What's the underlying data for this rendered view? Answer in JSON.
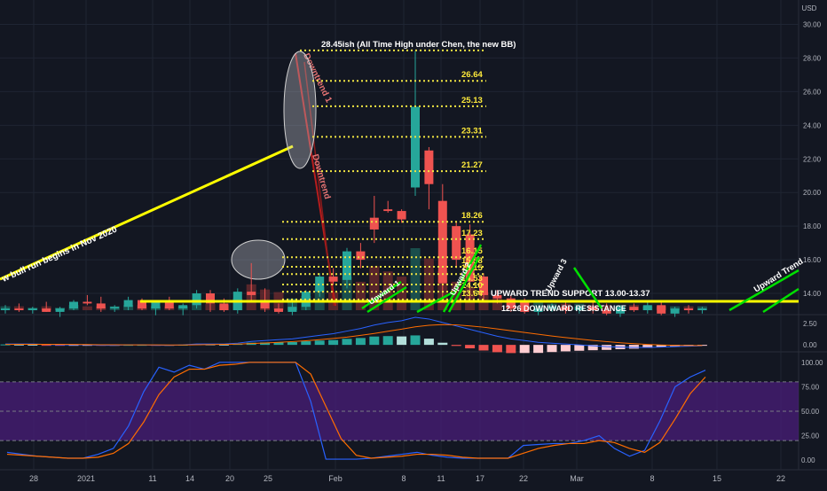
{
  "currency": "USD",
  "colors": {
    "background": "#131722",
    "grid": "#1f2533",
    "axis_text": "#b2b5be",
    "up": "#26a69a",
    "down": "#ef5350",
    "level_line": "#f0e442",
    "level_text": "#ffeb3b",
    "support_line": "#ffff00",
    "trend_green": "#00e000",
    "trend_red": "#b71c1c",
    "macd_line": "#2962ff",
    "signal_line": "#ff6d00",
    "stoch_band": "#4a1e7a"
  },
  "chart_data": [
    {
      "type": "candlestick",
      "title": "",
      "ylim": [
        13,
        30.5
      ],
      "y_ticks": [
        14,
        16,
        18,
        20,
        22,
        24,
        26,
        28,
        30
      ],
      "y_tick_labels": [
        "14.00",
        "16.00",
        "18.00",
        "20.00",
        "22.00",
        "24.00",
        "26.00",
        "28.00",
        "30.00"
      ],
      "x_tick_labels": [
        "28",
        "2021",
        "11",
        "14",
        "20",
        "25",
        "Feb",
        "8",
        "11",
        "17",
        "22",
        "Mar",
        "8",
        "15",
        "22"
      ],
      "candles": [
        {
          "o": 13.0,
          "h": 13.3,
          "l": 12.8,
          "c": 13.1
        },
        {
          "o": 13.1,
          "h": 13.4,
          "l": 12.9,
          "c": 13.0
        },
        {
          "o": 13.0,
          "h": 13.2,
          "l": 12.8,
          "c": 13.1
        },
        {
          "o": 13.1,
          "h": 13.5,
          "l": 12.9,
          "c": 12.9
        },
        {
          "o": 12.9,
          "h": 13.2,
          "l": 12.6,
          "c": 13.1
        },
        {
          "o": 13.1,
          "h": 13.6,
          "l": 13.0,
          "c": 13.5
        },
        {
          "o": 13.5,
          "h": 13.9,
          "l": 13.3,
          "c": 13.4
        },
        {
          "o": 13.4,
          "h": 13.8,
          "l": 12.9,
          "c": 13.1
        },
        {
          "o": 13.1,
          "h": 13.3,
          "l": 12.9,
          "c": 13.2
        },
        {
          "o": 13.2,
          "h": 13.8,
          "l": 13.0,
          "c": 13.6
        },
        {
          "o": 13.6,
          "h": 13.7,
          "l": 13.0,
          "c": 13.1
        },
        {
          "o": 13.1,
          "h": 13.6,
          "l": 12.7,
          "c": 13.5
        },
        {
          "o": 13.5,
          "h": 13.8,
          "l": 13.0,
          "c": 13.1
        },
        {
          "o": 13.1,
          "h": 13.4,
          "l": 12.7,
          "c": 13.3
        },
        {
          "o": 13.3,
          "h": 14.2,
          "l": 13.1,
          "c": 14.0
        },
        {
          "o": 14.0,
          "h": 14.2,
          "l": 12.9,
          "c": 13.4
        },
        {
          "o": 13.4,
          "h": 13.7,
          "l": 12.9,
          "c": 13.0
        },
        {
          "o": 13.0,
          "h": 14.3,
          "l": 12.8,
          "c": 14.1
        },
        {
          "o": 14.1,
          "h": 15.8,
          "l": 13.6,
          "c": 13.9
        },
        {
          "o": 13.5,
          "h": 14.3,
          "l": 12.9,
          "c": 13.1
        },
        {
          "o": 13.1,
          "h": 13.4,
          "l": 12.8,
          "c": 12.9
        },
        {
          "o": 12.9,
          "h": 13.5,
          "l": 12.7,
          "c": 13.2
        },
        {
          "o": 13.2,
          "h": 14.2,
          "l": 13.0,
          "c": 14.1
        },
        {
          "o": 14.1,
          "h": 15.2,
          "l": 13.8,
          "c": 15.0
        },
        {
          "o": 15.0,
          "h": 15.5,
          "l": 14.5,
          "c": 14.7
        },
        {
          "o": 14.8,
          "h": 16.7,
          "l": 14.3,
          "c": 16.5
        },
        {
          "o": 16.5,
          "h": 17.0,
          "l": 15.5,
          "c": 16.0
        },
        {
          "o": 18.5,
          "h": 19.8,
          "l": 17.0,
          "c": 17.8
        },
        {
          "o": 19.0,
          "h": 19.5,
          "l": 18.8,
          "c": 18.9
        },
        {
          "o": 18.9,
          "h": 19.0,
          "l": 18.2,
          "c": 18.4
        },
        {
          "o": 20.3,
          "h": 28.4,
          "l": 19.8,
          "c": 25.1
        },
        {
          "o": 22.5,
          "h": 22.7,
          "l": 19.0,
          "c": 20.5
        },
        {
          "o": 19.5,
          "h": 20.5,
          "l": 13.5,
          "c": 14.6
        },
        {
          "o": 18.0,
          "h": 18.3,
          "l": 15.5,
          "c": 16.0
        },
        {
          "o": 17.5,
          "h": 18.1,
          "l": 13.5,
          "c": 14.7
        },
        {
          "o": 15.0,
          "h": 15.2,
          "l": 13.6,
          "c": 13.9
        },
        {
          "o": 13.9,
          "h": 14.2,
          "l": 13.4,
          "c": 13.7
        },
        {
          "o": 13.7,
          "h": 13.9,
          "l": 12.9,
          "c": 13.1
        },
        {
          "o": 13.5,
          "h": 13.7,
          "l": 12.8,
          "c": 12.9
        },
        {
          "o": 12.9,
          "h": 13.2,
          "l": 12.7,
          "c": 13.1
        },
        {
          "o": 13.1,
          "h": 13.4,
          "l": 12.9,
          "c": 13.2
        },
        {
          "o": 13.2,
          "h": 13.5,
          "l": 12.8,
          "c": 13.0
        },
        {
          "o": 13.0,
          "h": 13.3,
          "l": 12.8,
          "c": 13.2
        },
        {
          "o": 13.2,
          "h": 13.6,
          "l": 12.8,
          "c": 13.0
        },
        {
          "o": 13.0,
          "h": 13.4,
          "l": 12.7,
          "c": 12.8
        },
        {
          "o": 12.8,
          "h": 13.3,
          "l": 12.6,
          "c": 13.2
        },
        {
          "o": 13.2,
          "h": 13.4,
          "l": 12.9,
          "c": 13.0
        },
        {
          "o": 13.0,
          "h": 13.5,
          "l": 12.8,
          "c": 13.3
        },
        {
          "o": 13.3,
          "h": 13.5,
          "l": 12.7,
          "c": 12.8
        },
        {
          "o": 12.8,
          "h": 13.2,
          "l": 12.6,
          "c": 13.1
        },
        {
          "o": 13.1,
          "h": 13.3,
          "l": 12.8,
          "c": 13.0
        },
        {
          "o": 13.0,
          "h": 13.2,
          "l": 12.8,
          "c": 13.1
        }
      ],
      "volume": [
        3,
        3,
        2,
        3,
        2,
        4,
        3,
        3,
        3,
        4,
        4,
        3,
        3,
        3,
        6,
        5,
        4,
        9,
        20,
        16,
        14,
        9,
        11,
        18,
        14,
        26,
        22,
        34,
        30,
        26,
        48,
        40,
        30,
        22,
        18,
        14,
        9,
        8,
        7,
        6,
        5,
        5,
        5,
        4,
        4,
        4,
        4,
        3,
        3,
        3,
        3,
        3
      ],
      "levels": [
        {
          "value": 28.45,
          "label": "28.45ish (All Time High under Chen, the new BB)"
        },
        {
          "value": 26.64,
          "label": "26.64"
        },
        {
          "value": 25.13,
          "label": "25.13"
        },
        {
          "value": 23.31,
          "label": "23.31"
        },
        {
          "value": 21.27,
          "label": "21.27"
        },
        {
          "value": 18.26,
          "label": "18.26"
        },
        {
          "value": 17.23,
          "label": "17.23"
        },
        {
          "value": 16.15,
          "label": "16.15"
        },
        {
          "value": 15.58,
          "label": "15.58"
        },
        {
          "value": 15.15,
          "label": "15.15"
        },
        {
          "value": 14.53,
          "label": "14.53"
        },
        {
          "value": 14.1,
          "label": "14.10"
        },
        {
          "value": 13.64,
          "label": "13.64"
        }
      ],
      "support": {
        "value": 13.3,
        "label": "UPWARD TREND SUPPORT 13.00-13.37"
      },
      "resistance_label": "12.26 DOWNWARD RESISTANCE",
      "annotations": [
        "w bull run begins in Nov 2020",
        "Downtrend",
        "Downtrend 1",
        "Upward 1",
        "Upward 2",
        "Upward 3",
        "Upward Trend"
      ]
    },
    {
      "type": "line",
      "name": "MACD",
      "ylim": [
        -0.5,
        3.2
      ],
      "y_tick_labels": [
        "2.50",
        "0.00"
      ],
      "y_ticks": [
        2.5,
        0
      ],
      "macd": [
        0.1,
        0.1,
        0.1,
        0.05,
        0.0,
        0.0,
        0.0,
        -0.05,
        -0.05,
        0.0,
        0.0,
        -0.05,
        -0.05,
        0.0,
        0.1,
        0.1,
        0.1,
        0.2,
        0.4,
        0.5,
        0.6,
        0.7,
        0.9,
        1.1,
        1.3,
        1.6,
        1.9,
        2.3,
        2.6,
        2.8,
        3.2,
        3.0,
        2.6,
        2.2,
        1.8,
        1.4,
        1.0,
        0.7,
        0.5,
        0.3,
        0.2,
        0.1,
        0.0,
        -0.1,
        -0.2,
        -0.25,
        -0.3,
        -0.3,
        -0.25,
        -0.2,
        -0.15,
        -0.1
      ],
      "signal": [
        0.05,
        0.06,
        0.07,
        0.07,
        0.06,
        0.05,
        0.04,
        0.02,
        0.01,
        0.0,
        0.0,
        0.0,
        -0.01,
        -0.01,
        0.02,
        0.04,
        0.06,
        0.09,
        0.15,
        0.22,
        0.3,
        0.38,
        0.48,
        0.6,
        0.74,
        0.9,
        1.1,
        1.33,
        1.58,
        1.82,
        2.1,
        2.28,
        2.35,
        2.32,
        2.2,
        2.05,
        1.85,
        1.65,
        1.44,
        1.23,
        1.03,
        0.85,
        0.68,
        0.52,
        0.38,
        0.25,
        0.14,
        0.05,
        -0.01,
        -0.05,
        -0.07,
        -0.08
      ]
    },
    {
      "type": "line",
      "name": "Stochastic RSI",
      "ylim": [
        -8,
        108
      ],
      "y_tick_labels": [
        "100.00",
        "75.00",
        "50.00",
        "25.00",
        "0.00"
      ],
      "y_ticks": [
        100,
        75,
        50,
        25,
        0
      ],
      "band": [
        20,
        80
      ],
      "k": [
        8,
        6,
        4,
        3,
        2,
        2,
        6,
        12,
        35,
        70,
        95,
        90,
        97,
        93,
        100,
        100,
        100,
        100,
        100,
        100,
        60,
        1,
        1,
        1,
        2,
        4,
        6,
        8,
        5,
        3,
        2,
        2,
        2,
        2,
        15,
        16,
        17,
        17,
        20,
        25,
        12,
        4,
        10,
        40,
        75,
        85,
        92
      ],
      "d": [
        6,
        5,
        4,
        3,
        2,
        2,
        3,
        7,
        17,
        39,
        67,
        85,
        93,
        93,
        97,
        98,
        100,
        100,
        100,
        100,
        88,
        55,
        22,
        5,
        2,
        3,
        4,
        6,
        6,
        5,
        3,
        2,
        2,
        2,
        7,
        12,
        15,
        17,
        17,
        20,
        18,
        12,
        8,
        18,
        42,
        68,
        85
      ]
    }
  ]
}
